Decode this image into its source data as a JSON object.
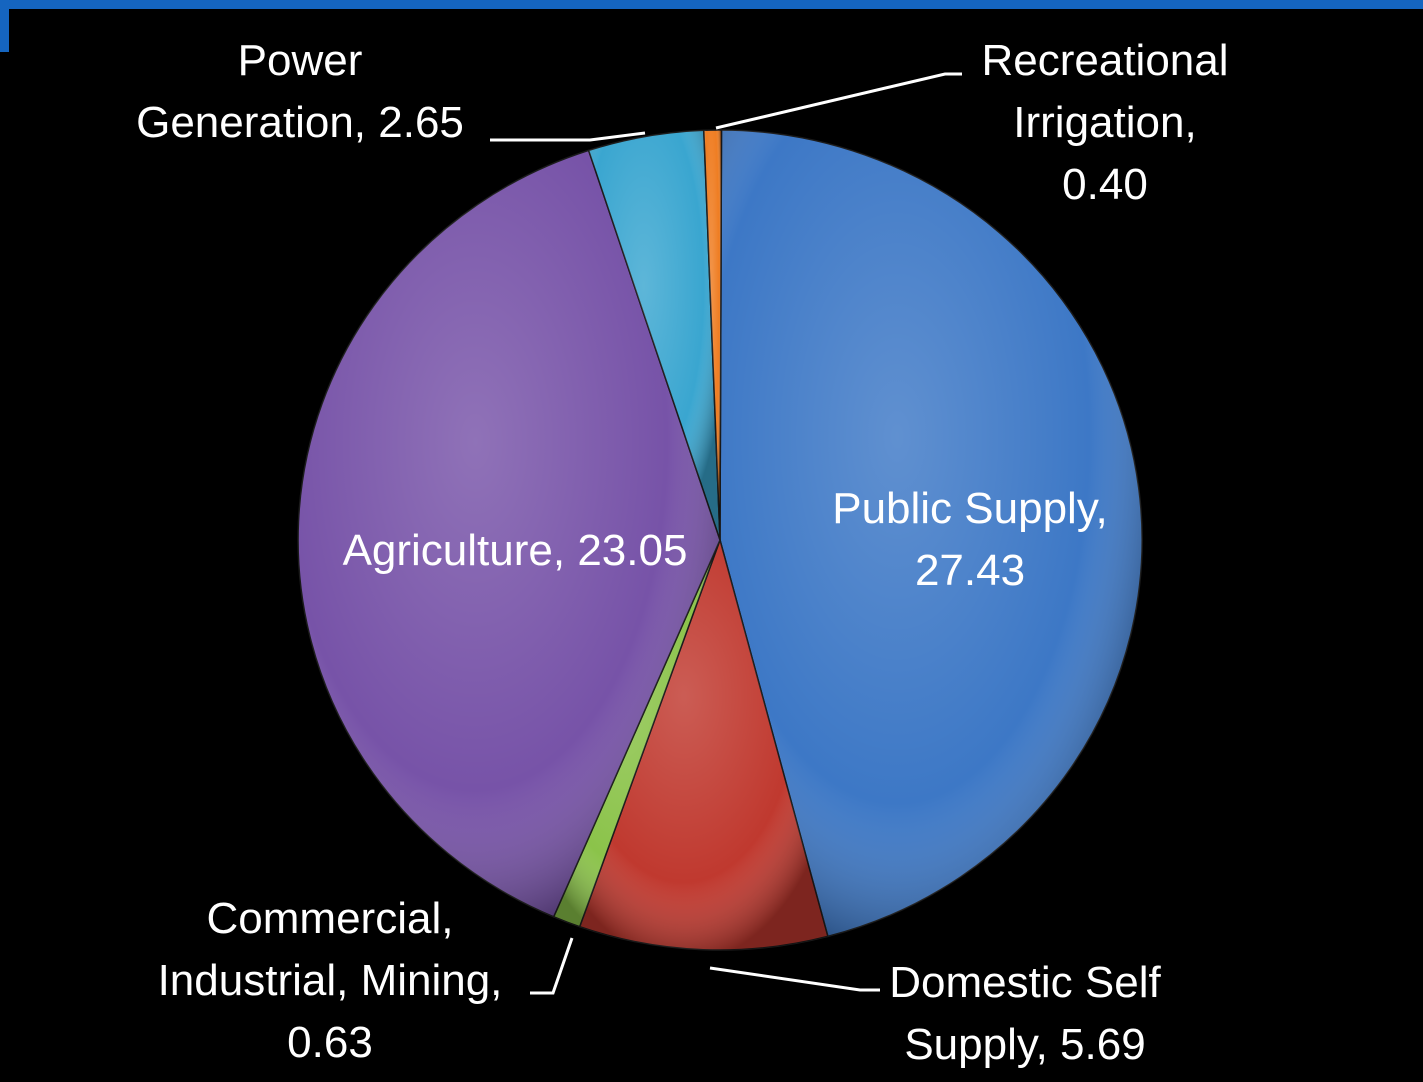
{
  "chart_data": {
    "type": "pie",
    "title": "",
    "slices": [
      {
        "label": "Public Supply",
        "value": 27.43,
        "color": "#3d78c6"
      },
      {
        "label": "Domestic Self Supply",
        "value": 5.69,
        "color": "#c0392f"
      },
      {
        "label": "Commercial, Industrial, Mining",
        "value": 0.63,
        "color": "#8bc34a"
      },
      {
        "label": "Agriculture",
        "value": 23.05,
        "color": "#7753a8"
      },
      {
        "label": "Power Generation",
        "value": 2.65,
        "color": "#3aa6d0"
      },
      {
        "label": "Recreational Irrigation",
        "value": 0.4,
        "color": "#ef7d22"
      }
    ]
  },
  "labels": {
    "public_supply": {
      "line1": "Public Supply,",
      "line2": "27.43"
    },
    "domestic_self_supply": {
      "line1": "Domestic Self",
      "line2": "Supply, 5.69"
    },
    "commercial": {
      "line1": "Commercial,",
      "line2": "Industrial, Mining,",
      "line3": "0.63"
    },
    "agriculture": {
      "line1": "Agriculture, 23.05"
    },
    "power_generation": {
      "line1": "Power",
      "line2": "Generation, 2.65"
    },
    "recreational_irrigation": {
      "line1": "Recreational",
      "line2": "Irrigation,",
      "line3": "0.40"
    }
  },
  "frame_color": "#1565c0"
}
